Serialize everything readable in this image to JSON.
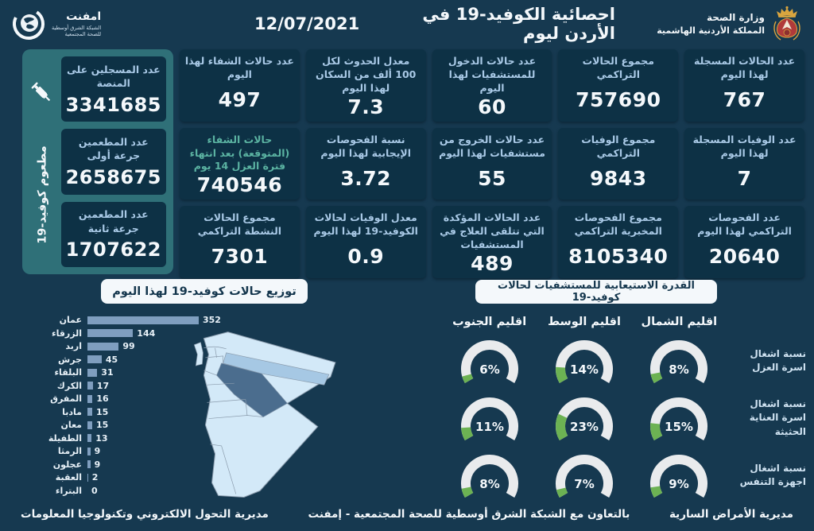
{
  "header": {
    "title": "احصائية الكوفيد-19 في الأردن ليوم",
    "date": "12/07/2021",
    "ministry": {
      "line1": "وزارة الصحة",
      "line2": "المملكة الأردنية الهاشمية"
    },
    "emphnet": {
      "name": "امفنت",
      "sub1": "الشبكة الشرق أوسطية",
      "sub2": "للصحة المجتمعية"
    }
  },
  "vaccine_panel": {
    "side_label": "مطعوم كوفيد-19",
    "items": [
      {
        "label": "عدد المسجلين على المنصة",
        "value": "3341685"
      },
      {
        "label": "عدد المطعمين جرعة أولى",
        "value": "2658675"
      },
      {
        "label": "عدد المطعمين جرعة ثانية",
        "value": "1707622"
      }
    ]
  },
  "stats": [
    {
      "label": "عدد الحالات المسجلة لهذا اليوم",
      "value": "767"
    },
    {
      "label": "مجموع الحالات التراكمي",
      "value": "757690"
    },
    {
      "label": "عدد حالات الدخول للمستشفيات لهذا اليوم",
      "value": "60"
    },
    {
      "label": "معدل الحدوث لكل 100 ألف من السكان لهذا اليوم",
      "value": "7.3"
    },
    {
      "label": "عدد حالات الشفاء لهذا اليوم",
      "value": "497"
    },
    {
      "label": "عدد الوفيات المسجلة لهذا اليوم",
      "value": "7"
    },
    {
      "label": "مجموع الوفيات التراكمي",
      "value": "9843"
    },
    {
      "label": "عدد حالات الخروج من مستشفيات لهذا اليوم",
      "value": "55"
    },
    {
      "label": "نسبة الفحوصات الإيجابية لهذا اليوم",
      "value": "3.72"
    },
    {
      "label": "حالات الشفاء (المتوقعة) بعد انتهاء فترة العزل 14 يوم",
      "value": "740546",
      "accent": true
    },
    {
      "label": "عدد الفحوصات التراكمي لهذا اليوم",
      "value": "20640"
    },
    {
      "label": "مجموع الفحوصات المخبرية التراكمي",
      "value": "8105340"
    },
    {
      "label": "عدد الحالات المؤكدة التي تتلقى العلاج في المستشفيات",
      "value": "489"
    },
    {
      "label": "معدل الوفيات لحالات الكوفيد-19 لهذا اليوم",
      "value": "0.9"
    },
    {
      "label": "مجموع الحالات النشطة التراكمي",
      "value": "7301"
    }
  ],
  "chart_data": [
    {
      "type": "bar",
      "orientation": "horizontal",
      "title": "توزيع حالات كوفيد-19 لهذا اليوم",
      "categories": [
        "عمان",
        "الزرقاء",
        "اربد",
        "جرش",
        "البلقاء",
        "الكرك",
        "المفرق",
        "مادبا",
        "معان",
        "الطفيلة",
        "الرمثا",
        "عجلون",
        "العقبة",
        "البتراء"
      ],
      "values": [
        352,
        144,
        99,
        45,
        31,
        17,
        16,
        15,
        15,
        13,
        9,
        9,
        2,
        0
      ],
      "xlim": [
        0,
        352
      ],
      "grid": false,
      "value_labels": true
    },
    {
      "type": "gauge",
      "title": "القدرة الاستيعابية للمستشفيات لحالات كوفيد-19",
      "unit": "%",
      "max": 100,
      "columns": [
        "اقليم الشمال",
        "اقليم الوسط",
        "اقليم الجنوب"
      ],
      "rows": [
        {
          "label": "نسبة اشغال اسرة العزل",
          "values": [
            8,
            14,
            6
          ]
        },
        {
          "label": "نسبة اشغال اسرة العناية الحثيثة",
          "values": [
            15,
            23,
            11
          ]
        },
        {
          "label": "نسبة اشغال اجهزة التنفس",
          "values": [
            9,
            7,
            8
          ]
        }
      ]
    }
  ],
  "map": {
    "country": "الأردن",
    "dark_region": "عمان",
    "medium_region": "الزرقاء"
  },
  "footer": {
    "right": "مديرية الأمراض السارية",
    "center": "بالتعاون مع الشبكة الشرق أوسطية للصحة المجتمعية - إمفنت",
    "left": "مديرية التحول الالكتروني وتكنولوجيا المعلومات"
  },
  "colors": {
    "background": "#163950",
    "stat_box": "#0d3145",
    "label_blue": "#a9c9e6",
    "accent_teal": "#5bb3a2",
    "vaccine_teal": "#2f7078",
    "bar_fill": "#7f9ebf",
    "gauge_green": "#6cb253",
    "gauge_track": "#e9ebed",
    "map_light": "#d3e9f8",
    "map_medium": "#a6c8e4",
    "map_dark": "#4b6d8e"
  }
}
